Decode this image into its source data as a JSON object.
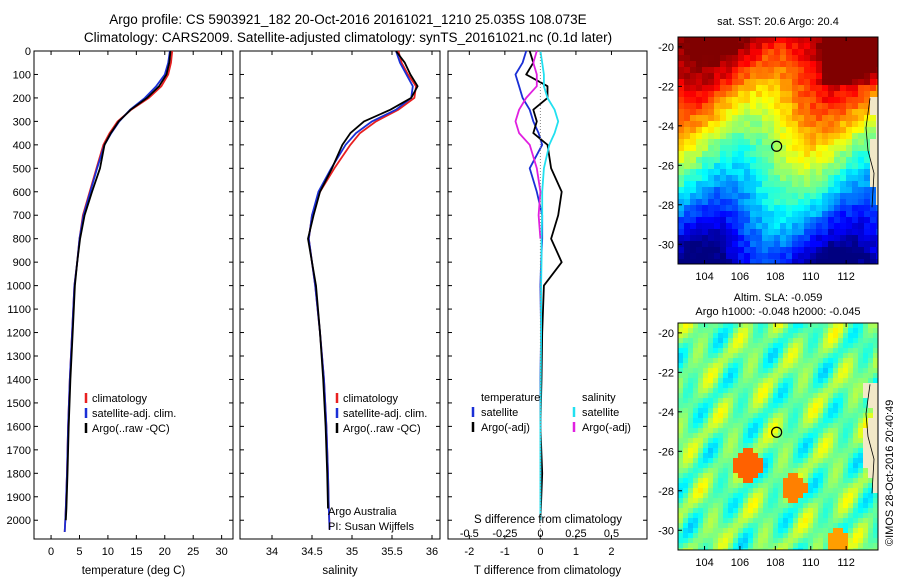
{
  "header": {
    "title_line1": "Argo profile: CS 5903921_182 20-Oct-2016 20161021_1210 25.035S 108.073E",
    "title_line2": "Climatology: CARS2009. Satellite-adjusted climatology: synTS_20161021.nc (0.1d later)"
  },
  "colors": {
    "climatology": "#e82020",
    "satellite": "#1a2fd6",
    "argo": "#000000",
    "salinity_satellite": "#22e0f0",
    "salinity_argo": "#e020e0"
  },
  "chart_data": [
    {
      "id": "temperature",
      "type": "line",
      "xlabel": "temperature (deg C)",
      "ylabel": "",
      "xlim": [
        -3,
        32
      ],
      "ylim": [
        2080,
        0
      ],
      "xticks": [
        0,
        5,
        10,
        15,
        20,
        25,
        30
      ],
      "yticks": [
        0,
        100,
        200,
        300,
        400,
        500,
        600,
        700,
        800,
        900,
        1000,
        1100,
        1200,
        1300,
        1400,
        1500,
        1600,
        1700,
        1800,
        1900,
        2000
      ],
      "legend": [
        "climatology",
        "satellite-adj. clim.",
        "Argo(..raw -QC)"
      ],
      "series": [
        {
          "name": "climatology",
          "color_key": "climatology",
          "x": [
            21.3,
            21.1,
            20.6,
            19.4,
            17.2,
            14.1,
            11.7,
            10.3,
            9.2,
            8.0,
            6.8,
            5.6,
            5.0,
            4.6,
            4.1,
            3.7,
            3.3,
            3.0,
            2.8,
            2.6,
            2.5,
            2.4
          ],
          "y": [
            0,
            50,
            100,
            150,
            200,
            250,
            300,
            350,
            400,
            500,
            600,
            700,
            800,
            900,
            1000,
            1200,
            1400,
            1600,
            1800,
            1950,
            2000,
            2050
          ]
        },
        {
          "name": "satellite-adj. clim.",
          "color_key": "satellite",
          "x": [
            20.9,
            20.6,
            20.0,
            18.5,
            16.5,
            13.9,
            12.0,
            10.6,
            9.4,
            8.1,
            6.9,
            5.7,
            5.0,
            4.6,
            4.1,
            3.7,
            3.3,
            3.0,
            2.8,
            2.6,
            2.5,
            2.4
          ],
          "y": [
            0,
            50,
            100,
            150,
            200,
            250,
            300,
            350,
            400,
            500,
            600,
            700,
            800,
            900,
            1000,
            1200,
            1400,
            1600,
            1800,
            1950,
            2000,
            2050
          ]
        },
        {
          "name": "Argo(..raw -QC)",
          "color_key": "argo",
          "x": [
            21.0,
            20.8,
            20.3,
            19.0,
            16.9,
            14.0,
            11.9,
            10.5,
            9.4,
            8.6,
            7.2,
            5.9,
            5.1,
            4.6,
            4.2,
            3.8,
            3.4,
            3.1,
            2.9,
            2.7,
            2.6
          ],
          "y": [
            0,
            50,
            100,
            150,
            200,
            250,
            300,
            350,
            400,
            500,
            600,
            700,
            800,
            900,
            1000,
            1200,
            1400,
            1600,
            1800,
            1950,
            2000
          ]
        }
      ]
    },
    {
      "id": "salinity",
      "type": "line",
      "xlabel": "salinity",
      "xlim": [
        33.6,
        36.1
      ],
      "ylim": [
        2080,
        0
      ],
      "xticks": [
        34,
        34.5,
        35,
        35.5,
        36
      ],
      "legend": [
        "climatology",
        "satellite-adj. clim.",
        "Argo(..raw -QC)"
      ],
      "series": [
        {
          "name": "climatology",
          "color_key": "climatology",
          "x": [
            35.58,
            35.62,
            35.7,
            35.8,
            35.78,
            35.58,
            35.3,
            35.1,
            34.98,
            34.78,
            34.6,
            34.5,
            34.46,
            34.5,
            34.54,
            34.6,
            34.65,
            34.68,
            34.7,
            34.71,
            34.72
          ],
          "y": [
            0,
            50,
            100,
            150,
            200,
            250,
            300,
            350,
            400,
            500,
            600,
            700,
            800,
            900,
            1000,
            1200,
            1400,
            1600,
            1800,
            1950,
            2040
          ]
        },
        {
          "name": "satellite-adj. clim.",
          "color_key": "satellite",
          "x": [
            35.55,
            35.6,
            35.68,
            35.76,
            35.74,
            35.55,
            35.25,
            35.05,
            34.92,
            34.74,
            34.58,
            34.5,
            34.46,
            34.5,
            34.54,
            34.6,
            34.65,
            34.68,
            34.7,
            34.71,
            34.72
          ],
          "y": [
            0,
            50,
            100,
            150,
            200,
            250,
            300,
            350,
            400,
            500,
            600,
            700,
            800,
            900,
            1000,
            1200,
            1400,
            1600,
            1800,
            1950,
            2040
          ]
        },
        {
          "name": "Argo(..raw -QC)",
          "color_key": "argo",
          "x": [
            35.55,
            35.66,
            35.73,
            35.82,
            35.74,
            35.48,
            35.15,
            34.98,
            34.88,
            34.75,
            34.6,
            34.52,
            34.45,
            34.5,
            34.55,
            34.6,
            34.64,
            34.67,
            34.69,
            34.7
          ],
          "y": [
            0,
            50,
            100,
            150,
            200,
            250,
            300,
            350,
            400,
            500,
            600,
            700,
            800,
            900,
            1000,
            1200,
            1400,
            1600,
            1800,
            1950
          ]
        }
      ],
      "annotation": [
        "Argo Australia",
        "PI: Susan Wijffels"
      ]
    },
    {
      "id": "differences",
      "type": "line",
      "xlabel": "T difference from climatology",
      "x2label": "S difference from climatology",
      "xlim": [
        -2.6,
        3.0
      ],
      "ylim": [
        2080,
        0
      ],
      "xticks": [
        -2,
        -1,
        0,
        1,
        2
      ],
      "x2ticks": [
        "-0.5",
        "-0.25",
        "0",
        "0.25",
        "0.5"
      ],
      "legend_temperature": {
        "heading": "temperature",
        "items": [
          "satellite",
          "Argo(-adj)"
        ]
      },
      "legend_salinity": {
        "heading": "salinity",
        "items": [
          "satellite",
          "Argo(-adj)"
        ]
      },
      "series": [
        {
          "name": "temperature satellite",
          "color_key": "satellite",
          "x": [
            -0.4,
            -0.5,
            -0.7,
            -0.6,
            -0.5,
            -0.3,
            -0.2,
            -0.05,
            0.05,
            -0.3,
            -0.1,
            0.05,
            0.05,
            0.02,
            0.0,
            0.02,
            0.0,
            0.0,
            0.0,
            0.0
          ],
          "y": [
            0,
            50,
            100,
            150,
            200,
            250,
            300,
            350,
            400,
            500,
            600,
            700,
            800,
            900,
            1000,
            1200,
            1400,
            1600,
            1800,
            2000
          ]
        },
        {
          "name": "temperature Argo(-adj)",
          "color_key": "argo",
          "x": [
            -0.3,
            -0.2,
            -0.4,
            0.2,
            0.2,
            -0.2,
            -0.1,
            -0.2,
            0.2,
            0.3,
            0.6,
            0.5,
            0.3,
            0.6,
            0.1,
            0.05,
            0.03,
            0.0,
            0.05,
            0.0
          ],
          "y": [
            0,
            50,
            100,
            150,
            200,
            250,
            300,
            350,
            400,
            500,
            600,
            700,
            800,
            900,
            1000,
            1200,
            1400,
            1600,
            1800,
            2000
          ]
        },
        {
          "name": "salinity satellite",
          "color_key": "salinity_satellite",
          "x": [
            0.0,
            0.05,
            0.1,
            0.1,
            0.2,
            0.4,
            0.5,
            0.4,
            0.25,
            0.1,
            0.05,
            0.05,
            0.03,
            0.03,
            0.02,
            0.02,
            0.01,
            0.0,
            0.0,
            0.0
          ],
          "y": [
            0,
            50,
            100,
            150,
            200,
            250,
            300,
            350,
            400,
            500,
            600,
            700,
            800,
            900,
            1000,
            1200,
            1400,
            1600,
            1800,
            2000
          ]
        },
        {
          "name": "salinity Argo(-adj)",
          "color_key": "salinity_argo",
          "x": [
            -0.1,
            -0.2,
            -0.1,
            -0.1,
            -0.4,
            -0.6,
            -0.7,
            -0.6,
            -0.3,
            -0.1,
            0.0,
            -0.05,
            0.0
          ],
          "y": [
            0,
            50,
            100,
            150,
            200,
            250,
            300,
            350,
            400,
            500,
            600,
            700,
            800
          ]
        }
      ]
    },
    {
      "id": "sst_map",
      "type": "heatmap",
      "title": "sat. SST: 20.6  Argo: 20.4",
      "xticks": [
        104,
        106,
        108,
        110,
        112
      ],
      "yticks": [
        -20,
        -22,
        -24,
        -26,
        -28,
        -30
      ],
      "xlim": [
        102.5,
        113.8
      ],
      "ylim": [
        -31,
        -19.5
      ],
      "marker": {
        "lon": 108.073,
        "lat": -25.035
      }
    },
    {
      "id": "sla_map",
      "type": "heatmap",
      "title_line1": "Altim. SLA: -0.059",
      "title_line2": "Argo h1000: -0.048  h2000: -0.045",
      "xticks": [
        104,
        106,
        108,
        110,
        112
      ],
      "yticks": [
        -20,
        -22,
        -24,
        -26,
        -28,
        -30
      ],
      "xlim": [
        102.5,
        113.8
      ],
      "ylim": [
        -31,
        -19.5
      ],
      "marker": {
        "lon": 108.073,
        "lat": -25.035
      }
    }
  ],
  "footer": {
    "credit": "©IMOS 28-Oct-2016 20:40:49"
  }
}
